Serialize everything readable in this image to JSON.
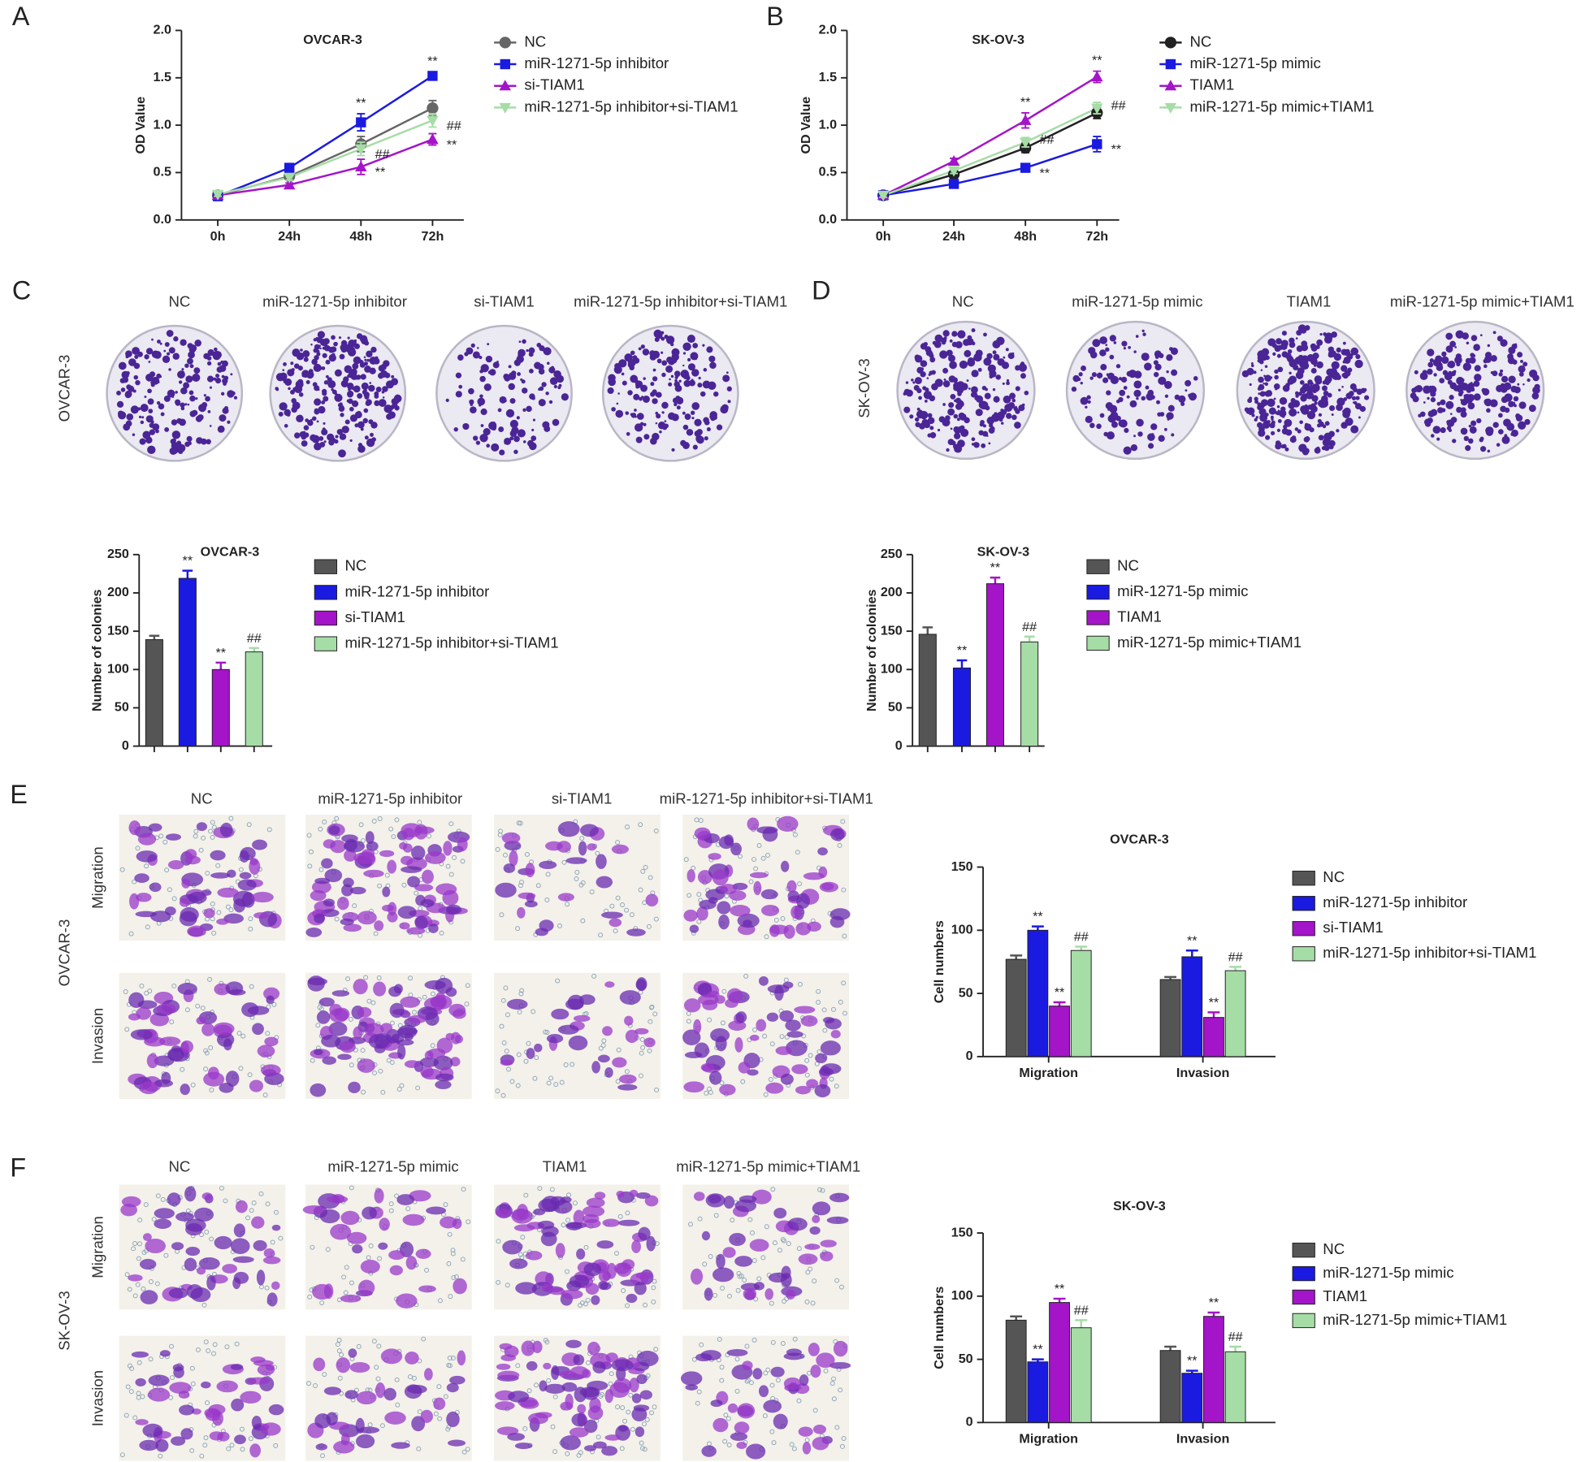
{
  "panel_labels": [
    "A",
    "B",
    "C",
    "D",
    "E",
    "F"
  ],
  "image_panels": [
    {
      "side_label": "OVCAR-3",
      "columns": [
        "NC",
        "miR-1271-5p inhibitor",
        "si-TIAM1",
        "miR-1271-5p inhibitor+si-TIAM1"
      ]
    },
    {
      "side_label": "SK-OV-3",
      "columns": [
        "NC",
        "miR-1271-5p mimic",
        "TIAM1",
        "miR-1271-5p mimic+TIAM1"
      ]
    },
    {
      "side_label": "OVCAR-3",
      "rows": [
        "Migration",
        "Invasion"
      ],
      "columns": [
        "NC",
        "miR-1271-5p inhibitor",
        "si-TIAM1",
        "miR-1271-5p inhibitor+si-TIAM1"
      ]
    },
    {
      "side_label": "SK-OV-3",
      "rows": [
        "Migration",
        "Invasion"
      ],
      "columns": [
        "NC",
        "miR-1271-5p mimic",
        "TIAM1",
        "miR-1271-5p mimic+TIAM1"
      ]
    }
  ],
  "chart_data": [
    {
      "type": "line",
      "title": "OVCAR-3",
      "y_label": "OD Value",
      "categories": [
        "0h",
        "24h",
        "48h",
        "72h"
      ],
      "ylim": [
        0,
        2
      ],
      "yticks": [
        {
          "value": 0,
          "label": "0.0"
        },
        {
          "value": 0.5,
          "label": "0.5"
        },
        {
          "value": 1,
          "label": "1.0"
        },
        {
          "value": 1.5,
          "label": "1.5"
        },
        {
          "value": 2,
          "label": "2.0"
        }
      ],
      "series": [
        {
          "name": "NC",
          "color": "#666666",
          "marker": "circle",
          "values": [
            0.26,
            0.46,
            0.8,
            1.18
          ],
          "errors": [
            0.02,
            0.03,
            0.08,
            0.08
          ],
          "significance": [
            null,
            null,
            null,
            null
          ]
        },
        {
          "name": "miR-1271-5p inhibitor",
          "color": "#1a1ae0",
          "marker": "square",
          "values": [
            0.25,
            0.55,
            1.03,
            1.52
          ],
          "errors": [
            0.02,
            0.03,
            0.09,
            0.04
          ],
          "significance": [
            null,
            null,
            "**",
            "**"
          ]
        },
        {
          "name": "si-TIAM1",
          "color": "#a414c8",
          "marker": "triangle-up",
          "values": [
            0.26,
            0.37,
            0.56,
            0.85
          ],
          "errors": [
            0.02,
            0.02,
            0.08,
            0.06
          ],
          "significance": [
            null,
            null,
            "**",
            "**"
          ]
        },
        {
          "name": "miR-1271-5p inhibitor+si-TIAM1",
          "color": "#a6dca6",
          "marker": "triangle-down",
          "values": [
            0.27,
            0.45,
            0.75,
            1.05
          ],
          "errors": [
            0.02,
            0.03,
            0.07,
            0.07
          ],
          "significance": [
            null,
            null,
            "##",
            "##"
          ]
        }
      ]
    },
    {
      "type": "line",
      "title": "SK-OV-3",
      "y_label": "OD Value",
      "categories": [
        "0h",
        "24h",
        "48h",
        "72h"
      ],
      "ylim": [
        0,
        2
      ],
      "yticks": [
        {
          "value": 0,
          "label": "0.0"
        },
        {
          "value": 0.5,
          "label": "0.5"
        },
        {
          "value": 1,
          "label": "1.0"
        },
        {
          "value": 1.5,
          "label": "1.5"
        },
        {
          "value": 2,
          "label": "2.0"
        }
      ],
      "series": [
        {
          "name": "NC",
          "color": "#222222",
          "marker": "circle",
          "values": [
            0.26,
            0.48,
            0.76,
            1.13
          ],
          "errors": [
            0.02,
            0.03,
            0.05,
            0.06
          ],
          "significance": [
            null,
            null,
            null,
            null
          ]
        },
        {
          "name": "miR-1271-5p mimic",
          "color": "#1a1ae0",
          "marker": "square",
          "values": [
            0.26,
            0.38,
            0.55,
            0.8
          ],
          "errors": [
            0.02,
            0.02,
            0.03,
            0.08
          ],
          "significance": [
            null,
            null,
            "**",
            "**"
          ]
        },
        {
          "name": "TIAM1",
          "color": "#a414c8",
          "marker": "triangle-up",
          "values": [
            0.26,
            0.62,
            1.05,
            1.51
          ],
          "errors": [
            0.02,
            0.03,
            0.08,
            0.06
          ],
          "significance": [
            null,
            null,
            "**",
            "**"
          ]
        },
        {
          "name": "miR-1271-5p mimic+TIAM1",
          "color": "#a6dca6",
          "marker": "triangle-down",
          "values": [
            0.26,
            0.52,
            0.82,
            1.18
          ],
          "errors": [
            0.02,
            0.03,
            0.05,
            0.06
          ],
          "significance": [
            null,
            null,
            "##",
            "##"
          ]
        }
      ]
    },
    {
      "type": "bar",
      "title": "OVCAR-3",
      "y_label": "Number of colonies",
      "ylim": [
        0,
        250
      ],
      "yticks": [
        0,
        50,
        100,
        150,
        200,
        250
      ],
      "series": [
        {
          "name": "NC",
          "color": "#555555",
          "values": [
            139
          ],
          "errors": [
            5
          ],
          "significance": [
            null
          ]
        },
        {
          "name": "miR-1271-5p inhibitor",
          "color": "#1a1ae0",
          "values": [
            219
          ],
          "errors": [
            10
          ],
          "significance": [
            "**"
          ]
        },
        {
          "name": "si-TIAM1",
          "color": "#a414c8",
          "values": [
            100
          ],
          "errors": [
            9
          ],
          "significance": [
            "**"
          ]
        },
        {
          "name": "miR-1271-5p inhibitor+si-TIAM1",
          "color": "#a6dca6",
          "values": [
            123
          ],
          "errors": [
            5
          ],
          "significance": [
            "##"
          ]
        }
      ]
    },
    {
      "type": "bar",
      "title": "SK-OV-3",
      "y_label": "Number of colonies",
      "ylim": [
        0,
        250
      ],
      "yticks": [
        0,
        50,
        100,
        150,
        200,
        250
      ],
      "series": [
        {
          "name": "NC",
          "color": "#555555",
          "values": [
            146
          ],
          "errors": [
            9
          ],
          "significance": [
            null
          ]
        },
        {
          "name": "miR-1271-5p mimic",
          "color": "#1a1ae0",
          "values": [
            102
          ],
          "errors": [
            10
          ],
          "significance": [
            "**"
          ]
        },
        {
          "name": "TIAM1",
          "color": "#a414c8",
          "values": [
            212
          ],
          "errors": [
            8
          ],
          "significance": [
            "**"
          ]
        },
        {
          "name": "miR-1271-5p mimic+TIAM1",
          "color": "#a6dca6",
          "values": [
            136
          ],
          "errors": [
            7
          ],
          "significance": [
            "##"
          ]
        }
      ]
    },
    {
      "type": "bar",
      "title": "OVCAR-3",
      "y_label": "Cell numbers",
      "categories": [
        "Migration",
        "Invasion"
      ],
      "ylim": [
        0,
        150
      ],
      "yticks": [
        0,
        50,
        100,
        150
      ],
      "series": [
        {
          "name": "NC",
          "color": "#555555",
          "values": [
            77,
            61
          ],
          "errors": [
            3,
            2
          ],
          "significance": [
            null,
            null
          ]
        },
        {
          "name": "miR-1271-5p inhibitor",
          "color": "#1a1ae0",
          "values": [
            100,
            79
          ],
          "errors": [
            3,
            5
          ],
          "significance": [
            "**",
            "**"
          ]
        },
        {
          "name": "si-TIAM1",
          "color": "#a414c8",
          "values": [
            40,
            31
          ],
          "errors": [
            3,
            4
          ],
          "significance": [
            "**",
            "**"
          ]
        },
        {
          "name": "miR-1271-5p inhibitor+si-TIAM1",
          "color": "#a6dca6",
          "values": [
            84,
            68
          ],
          "errors": [
            3,
            3
          ],
          "significance": [
            "##",
            "##"
          ]
        }
      ]
    },
    {
      "type": "bar",
      "title": "SK-OV-3",
      "y_label": "Cell numbers",
      "categories": [
        "Migration",
        "Invasion"
      ],
      "ylim": [
        0,
        150
      ],
      "yticks": [
        0,
        50,
        100,
        150
      ],
      "series": [
        {
          "name": "NC",
          "color": "#555555",
          "values": [
            81,
            57
          ],
          "errors": [
            3,
            3
          ],
          "significance": [
            null,
            null
          ]
        },
        {
          "name": "miR-1271-5p mimic",
          "color": "#1a1ae0",
          "values": [
            48,
            39
          ],
          "errors": [
            2,
            2
          ],
          "significance": [
            "**",
            "**"
          ]
        },
        {
          "name": "TIAM1",
          "color": "#a414c8",
          "values": [
            95,
            84
          ],
          "errors": [
            3,
            3
          ],
          "significance": [
            "**",
            "**"
          ]
        },
        {
          "name": "miR-1271-5p mimic+TIAM1",
          "color": "#a6dca6",
          "values": [
            75,
            56
          ],
          "errors": [
            6,
            4
          ],
          "significance": [
            "##",
            "##"
          ]
        }
      ]
    }
  ]
}
